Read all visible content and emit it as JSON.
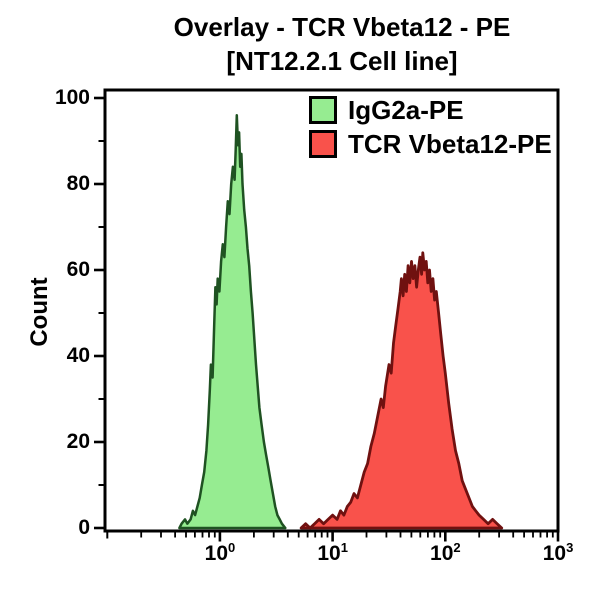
{
  "chart_data": {
    "type": "area",
    "subtype": "flow-cytometry-histogram-overlay",
    "title_line1": "Overlay - TCR Vbeta12 - PE",
    "title_line2": "[NT12.2.1 Cell line]",
    "xlabel": "",
    "ylabel": "Count",
    "x_scale": "log10",
    "x_log_min": -1.02,
    "x_log_max": 3.0,
    "ylim": [
      0,
      100
    ],
    "grid": "off",
    "legend_position": "top-right-inside",
    "axis_color": "#000000",
    "background_color": "#FFFFFF",
    "y_major_ticks": [
      0,
      20,
      40,
      60,
      80,
      100
    ],
    "y_minor_ticks": [
      10,
      30,
      50,
      70,
      90
    ],
    "x_major_ticks": [
      {
        "label_base": "10",
        "label_exp": "0",
        "log": 0,
        "value": 1
      },
      {
        "label_base": "10",
        "label_exp": "1",
        "log": 1,
        "value": 10
      },
      {
        "label_base": "10",
        "label_exp": "2",
        "log": 2,
        "value": 100
      },
      {
        "label_base": "10",
        "label_exp": "3",
        "log": 3,
        "value": 1000
      }
    ],
    "x_minor_tick_subdivisions": [
      2,
      3,
      4,
      5,
      6,
      7,
      8,
      9
    ],
    "points_format": "[log10(x fluorescence), count]",
    "summary": {
      "green_peak": {
        "approx_x": 1.4,
        "approx_count": 96
      },
      "red_peak": {
        "approx_x": 60,
        "approx_count": 64
      }
    },
    "series": [
      {
        "name": "IgG2a-PE",
        "fill": "#96EC91",
        "stroke": "#1F5222",
        "stroke_width": 2.5,
        "points": [
          [
            -0.36,
            0
          ],
          [
            -0.34,
            1
          ],
          [
            -0.31,
            2
          ],
          [
            -0.29,
            1
          ],
          [
            -0.26,
            2
          ],
          [
            -0.24,
            4
          ],
          [
            -0.22,
            3
          ],
          [
            -0.2,
            5
          ],
          [
            -0.18,
            7
          ],
          [
            -0.16,
            10
          ],
          [
            -0.14,
            13
          ],
          [
            -0.12,
            18
          ],
          [
            -0.105,
            24
          ],
          [
            -0.09,
            32
          ],
          [
            -0.08,
            38
          ],
          [
            -0.065,
            35
          ],
          [
            -0.05,
            48
          ],
          [
            -0.04,
            56
          ],
          [
            -0.03,
            52
          ],
          [
            -0.02,
            58
          ],
          [
            -0.005,
            55
          ],
          [
            0.01,
            62
          ],
          [
            0.025,
            66
          ],
          [
            0.04,
            63
          ],
          [
            0.055,
            70
          ],
          [
            0.07,
            76
          ],
          [
            0.085,
            73
          ],
          [
            0.1,
            80
          ],
          [
            0.115,
            84
          ],
          [
            0.13,
            81
          ],
          [
            0.14,
            88
          ],
          [
            0.15,
            96
          ],
          [
            0.16,
            89
          ],
          [
            0.17,
            92
          ],
          [
            0.18,
            84
          ],
          [
            0.19,
            87
          ],
          [
            0.2,
            80
          ],
          [
            0.215,
            74
          ],
          [
            0.23,
            70
          ],
          [
            0.245,
            65
          ],
          [
            0.26,
            61
          ],
          [
            0.275,
            55
          ],
          [
            0.29,
            50
          ],
          [
            0.305,
            44
          ],
          [
            0.32,
            38
          ],
          [
            0.335,
            33
          ],
          [
            0.35,
            28
          ],
          [
            0.37,
            24
          ],
          [
            0.39,
            20
          ],
          [
            0.41,
            17
          ],
          [
            0.43,
            14
          ],
          [
            0.45,
            11
          ],
          [
            0.47,
            8
          ],
          [
            0.49,
            5
          ],
          [
            0.51,
            3
          ],
          [
            0.53,
            2
          ],
          [
            0.55,
            1
          ],
          [
            0.58,
            0
          ]
        ]
      },
      {
        "name": "TCR Vbeta12-PE",
        "fill": "#F9524B",
        "stroke": "#701110",
        "stroke_width": 2.8,
        "points": [
          [
            0.72,
            0
          ],
          [
            0.76,
            1
          ],
          [
            0.8,
            0
          ],
          [
            0.84,
            1
          ],
          [
            0.88,
            2
          ],
          [
            0.92,
            1
          ],
          [
            0.96,
            2
          ],
          [
            1.0,
            3
          ],
          [
            1.04,
            2
          ],
          [
            1.07,
            4
          ],
          [
            1.1,
            3
          ],
          [
            1.13,
            5
          ],
          [
            1.16,
            6
          ],
          [
            1.19,
            8
          ],
          [
            1.22,
            7
          ],
          [
            1.25,
            10
          ],
          [
            1.28,
            13
          ],
          [
            1.31,
            15
          ],
          [
            1.34,
            19
          ],
          [
            1.37,
            22
          ],
          [
            1.4,
            26
          ],
          [
            1.43,
            30
          ],
          [
            1.45,
            28
          ],
          [
            1.47,
            33
          ],
          [
            1.5,
            38
          ],
          [
            1.52,
            36
          ],
          [
            1.54,
            43
          ],
          [
            1.56,
            47
          ],
          [
            1.58,
            51
          ],
          [
            1.6,
            55
          ],
          [
            1.61,
            58
          ],
          [
            1.625,
            54
          ],
          [
            1.64,
            59
          ],
          [
            1.655,
            55
          ],
          [
            1.67,
            61
          ],
          [
            1.685,
            57
          ],
          [
            1.7,
            62
          ],
          [
            1.715,
            58
          ],
          [
            1.73,
            61
          ],
          [
            1.745,
            56
          ],
          [
            1.76,
            60
          ],
          [
            1.775,
            63
          ],
          [
            1.79,
            59
          ],
          [
            1.8,
            64
          ],
          [
            1.815,
            60
          ],
          [
            1.83,
            62
          ],
          [
            1.845,
            57
          ],
          [
            1.86,
            60
          ],
          [
            1.875,
            55
          ],
          [
            1.89,
            58
          ],
          [
            1.905,
            53
          ],
          [
            1.92,
            55
          ],
          [
            1.94,
            50
          ],
          [
            1.96,
            45
          ],
          [
            1.98,
            40
          ],
          [
            2.0,
            36
          ],
          [
            2.03,
            29
          ],
          [
            2.06,
            23
          ],
          [
            2.09,
            18
          ],
          [
            2.12,
            15
          ],
          [
            2.15,
            11
          ],
          [
            2.18,
            9
          ],
          [
            2.21,
            7
          ],
          [
            2.24,
            5
          ],
          [
            2.27,
            4
          ],
          [
            2.3,
            3
          ],
          [
            2.34,
            2
          ],
          [
            2.38,
            1
          ],
          [
            2.42,
            2
          ],
          [
            2.46,
            1
          ],
          [
            2.5,
            0
          ]
        ]
      }
    ]
  }
}
